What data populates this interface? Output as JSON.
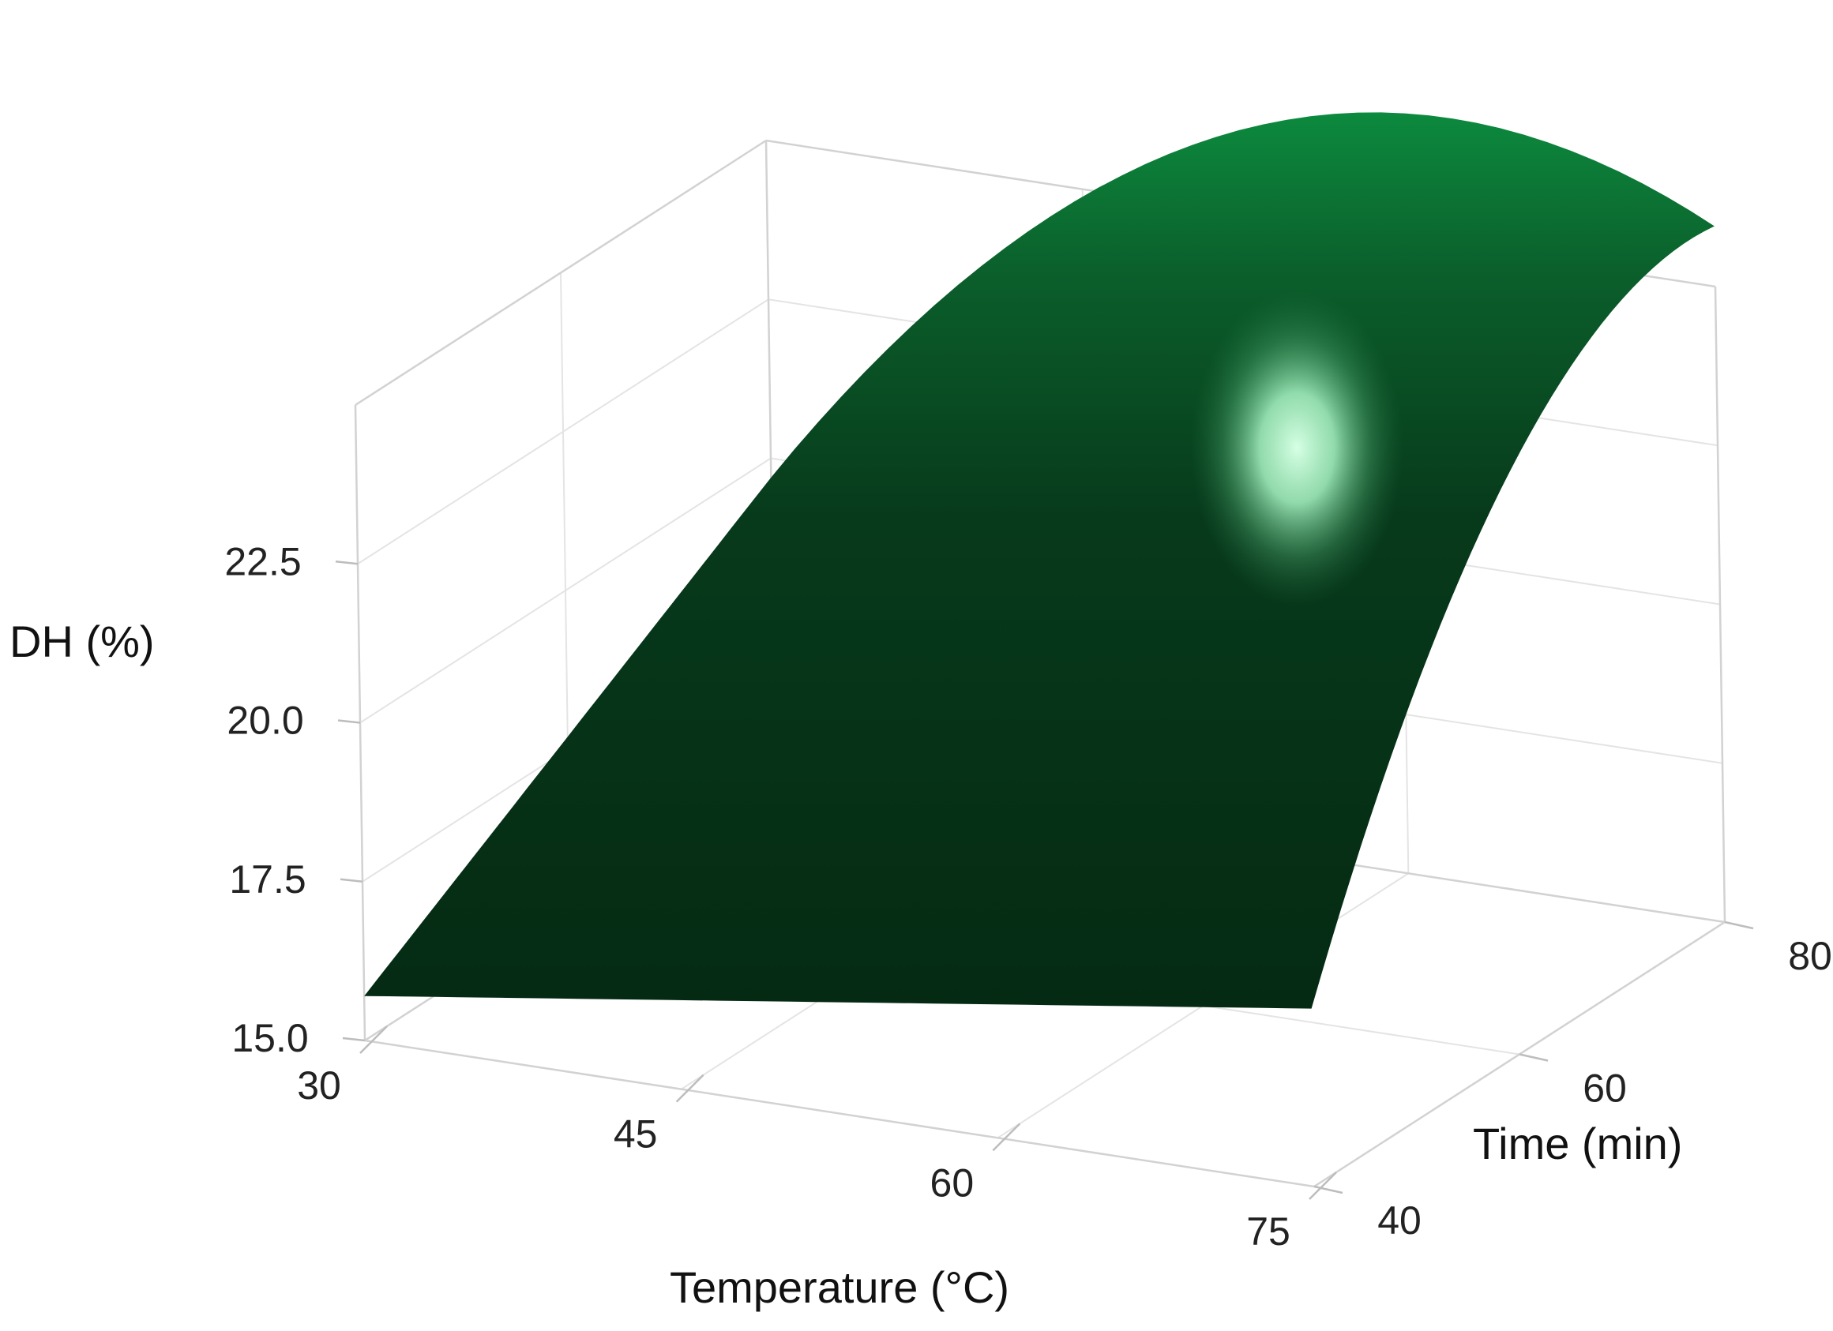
{
  "chart_data": {
    "type": "surface",
    "x": {
      "label": "Temperature (°C)",
      "ticks": [
        30,
        45,
        60,
        75
      ],
      "tick_labels": [
        "30",
        "45",
        "60",
        "75"
      ],
      "range": [
        30,
        75
      ]
    },
    "y": {
      "label": "Time (min)",
      "ticks": [
        40,
        60,
        80
      ],
      "tick_labels": [
        "40",
        "60",
        "80"
      ],
      "range": [
        40,
        80
      ]
    },
    "z": {
      "label": "DH (%)",
      "ticks": [
        15.0,
        17.5,
        20.0,
        22.5
      ],
      "tick_labels": [
        "15.0",
        "17.5",
        "20.0",
        "22.5"
      ]
    },
    "surface_corners": [
      {
        "x": 30,
        "y": 40,
        "z": 15.7
      },
      {
        "x": 75,
        "y": 40,
        "z": 17.8
      },
      {
        "x": 30,
        "y": 80,
        "z": 19.7
      },
      {
        "x": 75,
        "y": 80,
        "z": 21.3
      }
    ],
    "peak": {
      "x": 60,
      "y": 70,
      "z": 24.1
    },
    "surface_color": "#0a3d1c",
    "highlight_color": "#c8ffd8",
    "grid": true
  }
}
